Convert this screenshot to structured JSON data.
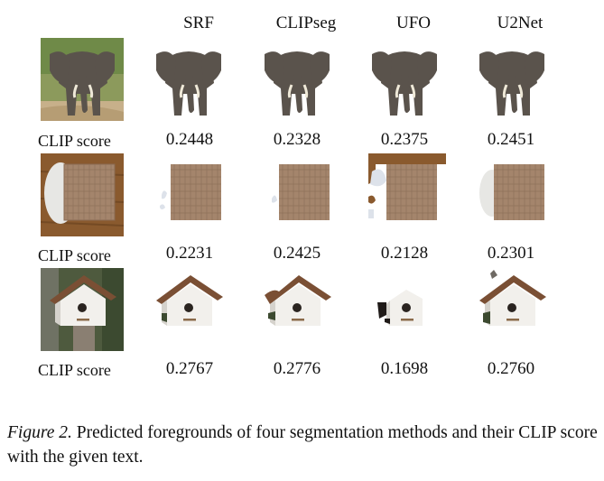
{
  "figure": {
    "methods": [
      "SRF",
      "CLIPseg",
      "UFO",
      "U2Net"
    ],
    "rows": [
      {
        "subject": "elephant",
        "label": "CLIP score",
        "scores": [
          "0.2448",
          "0.2328",
          "0.2375",
          "0.2451"
        ]
      },
      {
        "subject": "napkin",
        "label": "CLIP score",
        "scores": [
          "0.2231",
          "0.2425",
          "0.2128",
          "0.2301"
        ]
      },
      {
        "subject": "birdhouse",
        "label": "CLIP score",
        "scores": [
          "0.2767",
          "0.2776",
          "0.1698",
          "0.2760"
        ]
      }
    ],
    "caption": {
      "label": "Figure 2.",
      "text": " Predicted foregrounds of four segmentation methods and their CLIP score with the given text."
    }
  }
}
